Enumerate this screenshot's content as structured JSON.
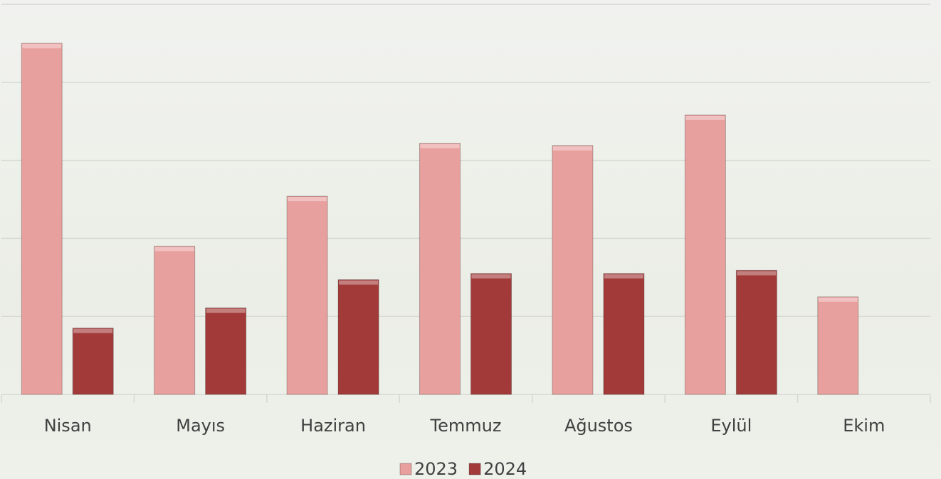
{
  "chart_data": {
    "type": "bar",
    "categories": [
      "Nisan",
      "Mayıs",
      "Haziran",
      "Temmuz",
      "Ağustos",
      "Eylül",
      "Ekim"
    ],
    "series": [
      {
        "name": "2023",
        "color": "#e8a09e",
        "values": [
          4.5,
          1.9,
          2.54,
          3.22,
          3.19,
          3.58,
          1.25
        ]
      },
      {
        "name": "2024",
        "color": "#a33a3a",
        "values": [
          0.85,
          1.11,
          1.47,
          1.55,
          1.55,
          1.59,
          null
        ]
      }
    ],
    "ylim": [
      0,
      5
    ],
    "yticks": [
      0,
      1,
      2,
      3,
      4,
      5
    ],
    "grid": true,
    "legend": "bottom"
  }
}
